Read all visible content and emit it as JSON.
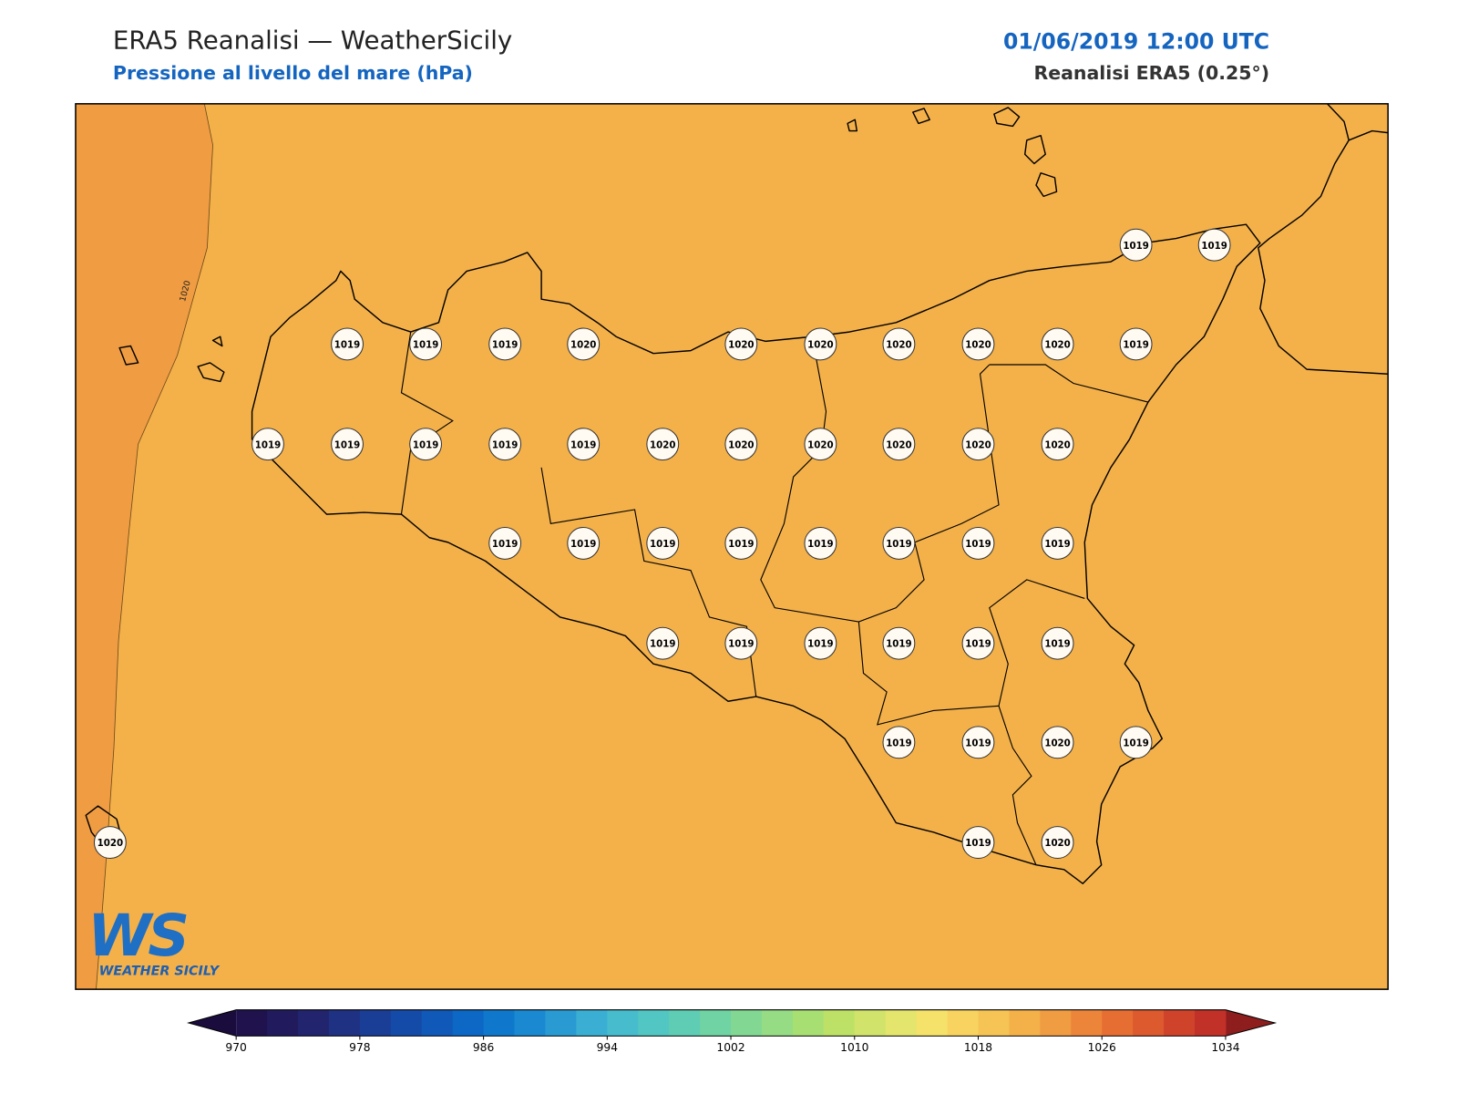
{
  "header": {
    "title": "ERA5 Reanalisi — WeatherSicily",
    "subtitle": "Pressione al livello del mare (hPa)",
    "datetime": "01/06/2019 12:00 UTC",
    "source": "Reanalisi ERA5 (0.25°)"
  },
  "map": {
    "contour_label": "1020",
    "pressure_labels": [
      1019,
      1019,
      1019,
      1019,
      1019,
      1020,
      1020,
      1020,
      1020,
      1020,
      1020,
      1019,
      1019,
      1019,
      1019,
      1019,
      1019,
      1020,
      1020,
      1020,
      1020,
      1020,
      1020,
      1019,
      1019,
      1019,
      1019,
      1019,
      1019,
      1019,
      1019,
      1019,
      1019,
      1019,
      1019,
      1019,
      1019,
      1019,
      1019,
      1020,
      1019,
      1020,
      1019,
      1020
    ]
  },
  "logo": {
    "mark": "WS",
    "name": "WEATHER SICILY"
  },
  "colorbar": {
    "range": [
      970,
      1034
    ],
    "ticks": [
      970,
      978,
      986,
      994,
      1002,
      1010,
      1018,
      1026,
      1034
    ],
    "under_color": "#1a0c3d",
    "over_color": "#8e1d1d",
    "colors": [
      "#20124d",
      "#211b5e",
      "#22246e",
      "#1f3183",
      "#1a3d96",
      "#154ba8",
      "#1059b8",
      "#0c68c4",
      "#0f78cc",
      "#1a89d1",
      "#2a9bd2",
      "#3aafd3",
      "#47bccd",
      "#52c6c2",
      "#5ecdb3",
      "#6fd3a3",
      "#82d893",
      "#95dc84",
      "#a8df73",
      "#bde166",
      "#d1e36a",
      "#e3e56d",
      "#f5e26a",
      "#f9d35f",
      "#f6c455",
      "#f4b14a",
      "#f09c42",
      "#ec853a",
      "#e66e33",
      "#dd592e",
      "#d0432b",
      "#c23128"
    ]
  }
}
